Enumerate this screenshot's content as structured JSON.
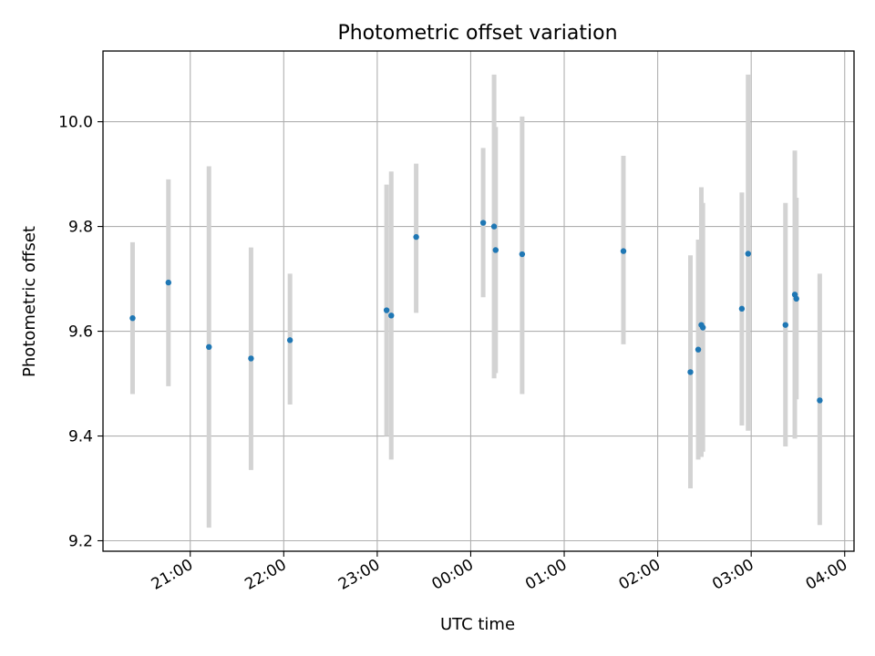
{
  "chart_data": {
    "type": "scatter",
    "title": "Photometric offset variation",
    "xlabel": "UTC time",
    "ylabel": "Photometric offset",
    "x_axis": "time (h:mm, UTC; times after 24:00 are the next day)",
    "xlim": [
      "20:04",
      "04:06"
    ],
    "ylim": [
      9.18,
      10.135
    ],
    "grid": true,
    "x_ticks": [
      "21:00",
      "22:00",
      "23:00",
      "00:00",
      "01:00",
      "02:00",
      "03:00",
      "04:00"
    ],
    "y_ticks": [
      "9.2",
      "9.4",
      "9.6",
      "9.8",
      "10.0"
    ],
    "y_tick_values": [
      9.2,
      9.4,
      9.6,
      9.8,
      10.0
    ],
    "point_color": "#1f77b4",
    "errorbar_color": "#d3d3d3",
    "points": [
      {
        "t": "20:23",
        "y": 9.625,
        "lo": 9.48,
        "hi": 9.77
      },
      {
        "t": "20:46",
        "y": 9.693,
        "lo": 9.495,
        "hi": 9.89
      },
      {
        "t": "21:12",
        "y": 9.57,
        "lo": 9.225,
        "hi": 9.915
      },
      {
        "t": "21:39",
        "y": 9.548,
        "lo": 9.335,
        "hi": 9.76
      },
      {
        "t": "22:04",
        "y": 9.583,
        "lo": 9.46,
        "hi": 9.71
      },
      {
        "t": "23:06",
        "y": 9.64,
        "lo": 9.4,
        "hi": 9.88
      },
      {
        "t": "23:09",
        "y": 9.63,
        "lo": 9.355,
        "hi": 9.905
      },
      {
        "t": "23:25",
        "y": 9.78,
        "lo": 9.635,
        "hi": 9.92
      },
      {
        "t": "00:08",
        "y": 9.807,
        "lo": 9.665,
        "hi": 9.95
      },
      {
        "t": "00:15",
        "y": 9.8,
        "lo": 9.51,
        "hi": 10.09
      },
      {
        "t": "00:16",
        "y": 9.755,
        "lo": 9.52,
        "hi": 9.99
      },
      {
        "t": "00:33",
        "y": 9.747,
        "lo": 9.48,
        "hi": 10.01
      },
      {
        "t": "01:38",
        "y": 9.753,
        "lo": 9.575,
        "hi": 9.935
      },
      {
        "t": "02:21",
        "y": 9.522,
        "lo": 9.3,
        "hi": 9.745
      },
      {
        "t": "02:26",
        "y": 9.565,
        "lo": 9.355,
        "hi": 9.775
      },
      {
        "t": "02:28",
        "y": 9.612,
        "lo": 9.36,
        "hi": 9.875
      },
      {
        "t": "02:29",
        "y": 9.607,
        "lo": 9.37,
        "hi": 9.845
      },
      {
        "t": "02:54",
        "y": 9.643,
        "lo": 9.42,
        "hi": 9.865
      },
      {
        "t": "02:58",
        "y": 9.748,
        "lo": 9.41,
        "hi": 10.09
      },
      {
        "t": "03:22",
        "y": 9.612,
        "lo": 9.38,
        "hi": 9.845
      },
      {
        "t": "03:28",
        "y": 9.67,
        "lo": 9.395,
        "hi": 9.945
      },
      {
        "t": "03:29",
        "y": 9.662,
        "lo": 9.47,
        "hi": 9.855
      },
      {
        "t": "03:44",
        "y": 9.468,
        "lo": 9.23,
        "hi": 9.71
      }
    ]
  }
}
